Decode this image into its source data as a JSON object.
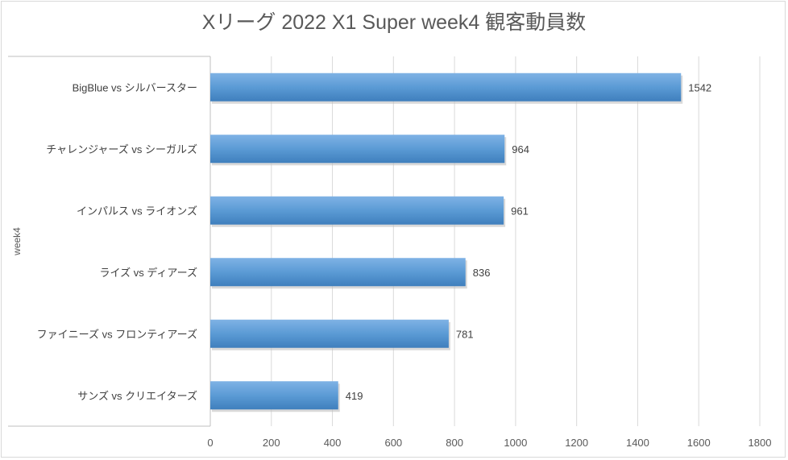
{
  "chart_data": {
    "type": "bar",
    "orientation": "horizontal",
    "title": "Xリーグ 2022 X1 Super week4 観客動員数",
    "group_label": "week4",
    "categories": [
      "BigBlue vs シルバースター",
      "チャレンジャーズ vs シーガルズ",
      "インパルス vs ライオンズ",
      "ライズ vs ディアーズ",
      "ファイニーズ vs フロンティアーズ",
      "サンズ vs クリエイターズ"
    ],
    "values": [
      1542,
      964,
      961,
      836,
      781,
      419
    ],
    "xlim": [
      0,
      1800
    ],
    "xticks": [
      0,
      200,
      400,
      600,
      800,
      1000,
      1200,
      1400,
      1600,
      1800
    ],
    "grid": true,
    "legend": "none",
    "bar_color": "#5b9bd5"
  }
}
